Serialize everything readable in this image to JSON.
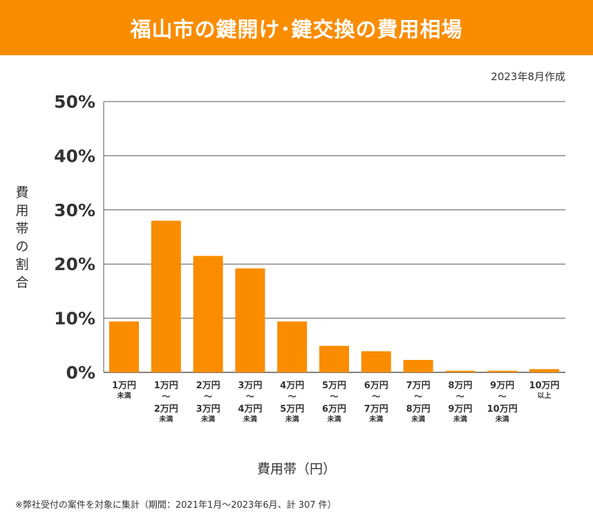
{
  "header": {
    "title": "福山市の鍵開け･鍵交換の費用相場"
  },
  "date_note": "2023年8月作成",
  "footnote": "※弊社受付の案件を対象に集計（期間：2021年1月～2023年6月、計 307 件）",
  "colors": {
    "header": "#fa8c00",
    "bar": "#fa8c00",
    "grid": "#555555"
  },
  "chart_data": {
    "type": "bar",
    "title": "福山市の鍵開け･鍵交換の費用相場",
    "xlabel": "費用帯（円）",
    "ylabel": "費用帯の割合",
    "ylim": [
      0,
      50
    ],
    "yticks": [
      "0%",
      "10%",
      "20%",
      "30%",
      "40%",
      "50%"
    ],
    "grid": true,
    "categories": [
      [
        "1万円",
        "未満"
      ],
      [
        "1万円",
        "～",
        "2万円",
        "未満"
      ],
      [
        "2万円",
        "～",
        "3万円",
        "未満"
      ],
      [
        "3万円",
        "～",
        "4万円",
        "未満"
      ],
      [
        "4万円",
        "～",
        "5万円",
        "未満"
      ],
      [
        "5万円",
        "～",
        "6万円",
        "未満"
      ],
      [
        "6万円",
        "～",
        "7万円",
        "未満"
      ],
      [
        "7万円",
        "～",
        "8万円",
        "未満"
      ],
      [
        "8万円",
        "～",
        "9万円",
        "未満"
      ],
      [
        "9万円",
        "～",
        "10万円",
        "未満"
      ],
      [
        "10万円",
        "以上"
      ]
    ],
    "values": [
      9.4,
      28.0,
      21.5,
      19.2,
      9.4,
      4.9,
      3.9,
      2.3,
      0.3,
      0.3,
      0.6
    ]
  }
}
